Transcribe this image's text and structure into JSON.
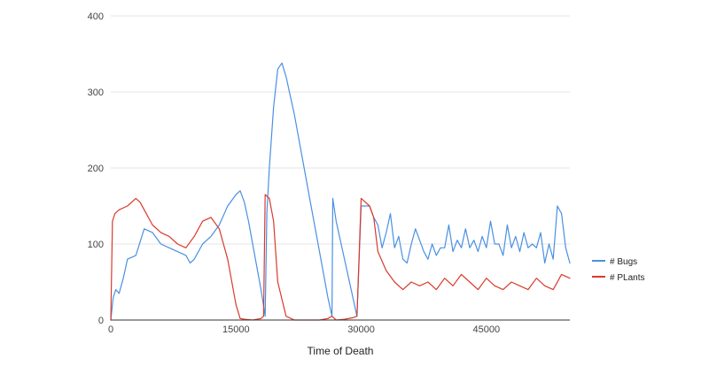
{
  "chart_data": {
    "type": "line",
    "title": "",
    "xlabel": "Time of Death",
    "ylabel": "",
    "xlim": [
      0,
      55000
    ],
    "ylim": [
      0,
      400
    ],
    "xticks": [
      0,
      15000,
      30000,
      45000
    ],
    "yticks": [
      0,
      100,
      200,
      300,
      400
    ],
    "grid": true,
    "legend_position": "right",
    "series": [
      {
        "name": "# Bugs",
        "color": "#4a90e2",
        "x": [
          0,
          300,
          600,
          1000,
          1500,
          2000,
          3000,
          4000,
          5000,
          6000,
          7000,
          8000,
          9000,
          9500,
          10000,
          11000,
          12000,
          13000,
          14000,
          15000,
          15500,
          16000,
          16500,
          17000,
          18000,
          18500,
          18700,
          19000,
          19500,
          20000,
          20500,
          21000,
          22000,
          23000,
          24000,
          25000,
          26000,
          26500,
          26600,
          27000,
          28000,
          29000,
          29500,
          30000,
          31000,
          31500,
          32000,
          32500,
          33000,
          33500,
          34000,
          34500,
          35000,
          35500,
          36000,
          36500,
          37000,
          37500,
          38000,
          38500,
          39000,
          39500,
          40000,
          40500,
          41000,
          41500,
          42000,
          42500,
          43000,
          43500,
          44000,
          44500,
          45000,
          45500,
          46000,
          46500,
          47000,
          47500,
          48000,
          48500,
          49000,
          49500,
          50000,
          50500,
          51000,
          51500,
          52000,
          52500,
          53000,
          53500,
          54000,
          54500,
          55000
        ],
        "values": [
          0,
          30,
          40,
          35,
          55,
          80,
          85,
          120,
          115,
          100,
          95,
          90,
          85,
          75,
          80,
          100,
          110,
          125,
          150,
          165,
          170,
          155,
          130,
          100,
          40,
          5,
          140,
          200,
          280,
          330,
          338,
          320,
          270,
          210,
          150,
          90,
          30,
          5,
          160,
          130,
          80,
          30,
          5,
          150,
          150,
          135,
          125,
          95,
          115,
          140,
          95,
          110,
          80,
          75,
          100,
          120,
          105,
          90,
          80,
          100,
          85,
          95,
          95,
          125,
          90,
          105,
          95,
          120,
          95,
          105,
          90,
          110,
          95,
          130,
          100,
          100,
          85,
          125,
          95,
          110,
          90,
          115,
          95,
          100,
          95,
          115,
          75,
          100,
          80,
          150,
          140,
          95,
          75
        ]
      },
      {
        "name": "# PLants",
        "color": "#d93a2b",
        "x": [
          0,
          200,
          500,
          1000,
          2000,
          3000,
          3500,
          4000,
          5000,
          6000,
          7000,
          8000,
          9000,
          10000,
          11000,
          12000,
          13000,
          14000,
          15000,
          15500,
          16000,
          17000,
          18000,
          18300,
          18500,
          19000,
          19500,
          20000,
          21000,
          22000,
          23000,
          24000,
          25000,
          26000,
          26500,
          27000,
          28000,
          29000,
          29500,
          30000,
          30500,
          31000,
          31500,
          32000,
          33000,
          34000,
          35000,
          36000,
          37000,
          38000,
          39000,
          40000,
          41000,
          42000,
          43000,
          44000,
          45000,
          46000,
          47000,
          48000,
          49000,
          50000,
          51000,
          52000,
          53000,
          54000,
          55000
        ],
        "values": [
          0,
          130,
          140,
          145,
          150,
          160,
          155,
          145,
          125,
          115,
          110,
          100,
          95,
          110,
          130,
          135,
          120,
          80,
          20,
          2,
          1,
          0,
          2,
          5,
          165,
          160,
          130,
          50,
          5,
          0,
          0,
          0,
          0,
          2,
          5,
          0,
          1,
          3,
          5,
          160,
          155,
          150,
          135,
          90,
          65,
          50,
          40,
          50,
          45,
          50,
          40,
          55,
          45,
          60,
          50,
          40,
          55,
          45,
          40,
          50,
          45,
          40,
          55,
          45,
          40,
          60,
          55
        ]
      }
    ]
  }
}
